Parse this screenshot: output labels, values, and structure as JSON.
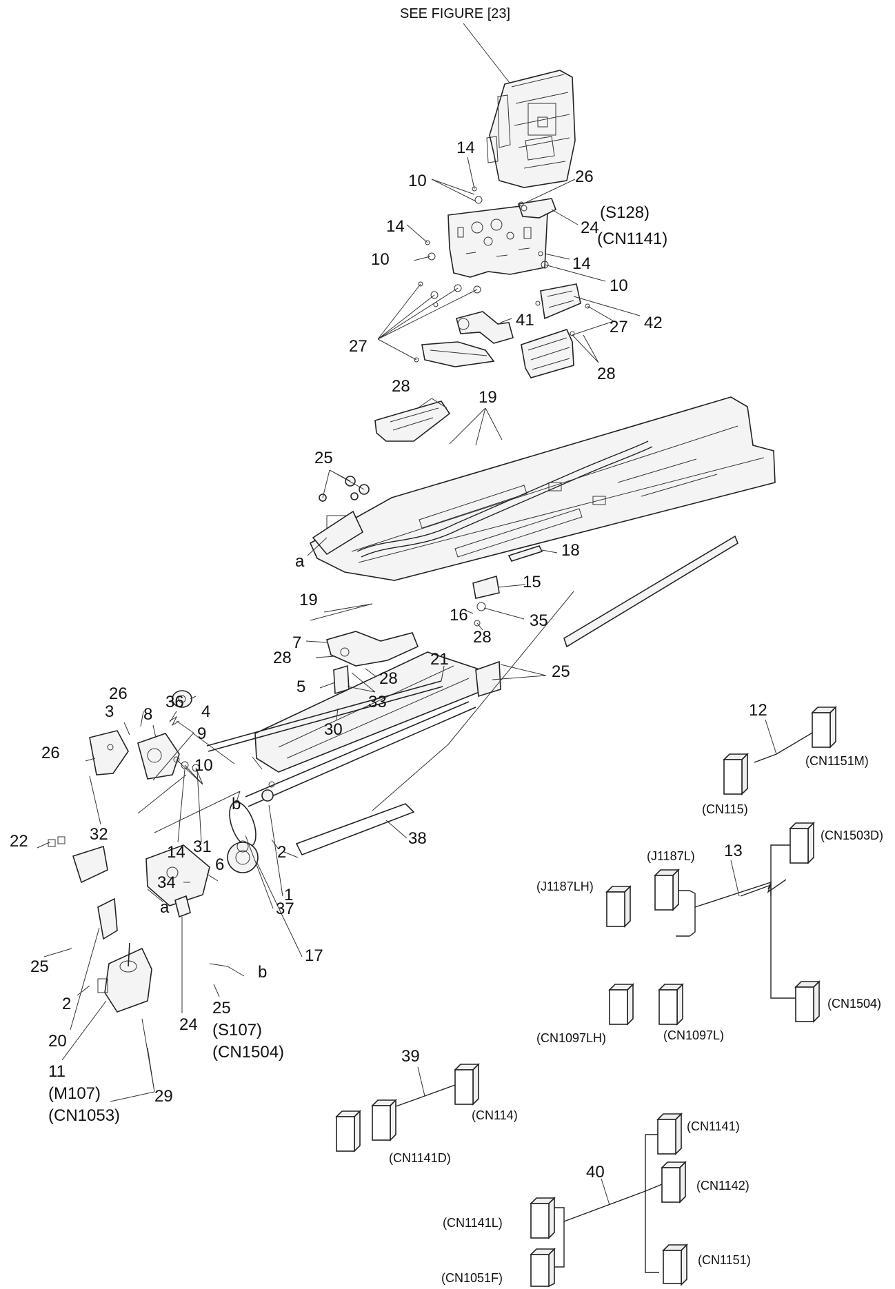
{
  "header": {
    "see_figure": "SEE FIGURE [23]"
  },
  "callouts": {
    "c14a": "14",
    "c10a": "10",
    "c26a": "26",
    "c24a": "24",
    "c24a_s": "(S128)",
    "c24a_cn": "(CN1141)",
    "c14b": "14",
    "c10b": "10",
    "c14c": "14",
    "c10c": "10",
    "c41": "41",
    "c27a": "27",
    "c27b": "27",
    "c42": "42",
    "c28a": "28",
    "c28b": "28",
    "c19a": "19",
    "c25a": "25",
    "ca1": "a",
    "c18": "18",
    "c15": "15",
    "c16": "16",
    "c35": "35",
    "c28c": "28",
    "c19b": "19",
    "c7": "7",
    "c28d": "28",
    "c5": "5",
    "c28e": "28",
    "c33": "33",
    "c30": "30",
    "c21": "21",
    "c25b": "25",
    "c26b": "26",
    "c36": "36",
    "c3": "3",
    "c8": "8",
    "c4": "4",
    "c9": "9",
    "c26c": "26",
    "c10d": "10",
    "c32": "32",
    "c14d": "14",
    "c31": "31",
    "cb1": "b",
    "c38": "38",
    "c2a": "2",
    "c1": "1",
    "c37": "37",
    "c17": "17",
    "c22": "22",
    "c34": "34",
    "c6": "6",
    "ca2": "a",
    "cb2": "b",
    "c25c": "25",
    "c25d": "25",
    "c25d_s": "(S107)",
    "c25d_cn": "(CN1504)",
    "c2b": "2",
    "c20": "20",
    "c24b": "24",
    "c11": "11",
    "c11_m": "(M107)",
    "c11_cn": "(CN1053)",
    "c29": "29"
  },
  "harnesses": {
    "h12": {
      "number": "12",
      "connectors": [
        "(CN1151M)",
        "(CN115)"
      ]
    },
    "h13": {
      "number": "13",
      "connectors": [
        "(CN1503D)",
        "(J1187L)",
        "(J1187LH)",
        "(CN1504)",
        "(CN1097LH)",
        "(CN1097L)"
      ]
    },
    "h39": {
      "number": "39",
      "connectors": [
        "(CN114)",
        "(CN1141D)"
      ]
    },
    "h40": {
      "number": "40",
      "connectors": [
        "(CN1141)",
        "(CN1142)",
        "(CN1141L)",
        "(CN1151)",
        "(CN1051F)"
      ]
    }
  }
}
